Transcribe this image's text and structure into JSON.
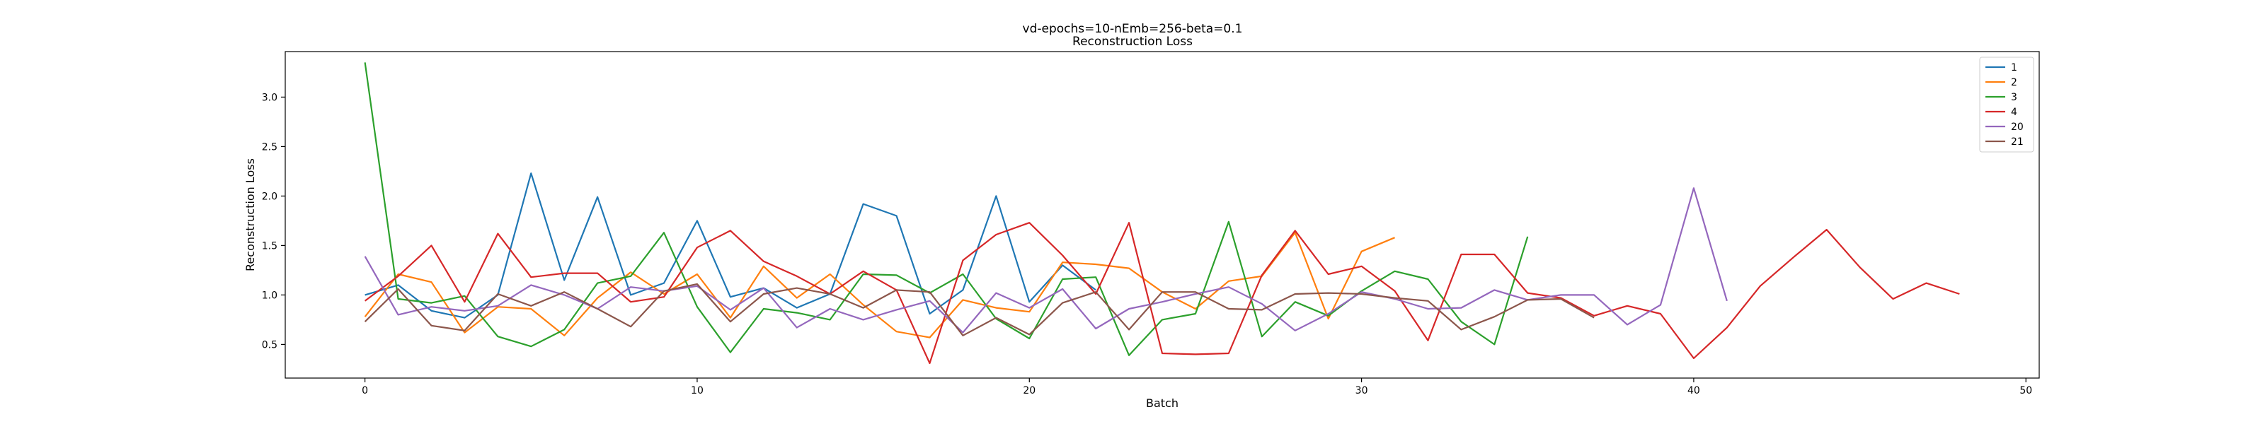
{
  "chart_data": {
    "type": "line",
    "title": "vd-epochs=10-nEmb=256-beta=0.1",
    "subtitle": "Reconstruction Loss",
    "xlabel": "Batch",
    "ylabel": "Reconstruction Loss",
    "xlim": [
      -2.4,
      50.4
    ],
    "ylim": [
      0.16,
      3.46
    ],
    "xticks": [
      0,
      10,
      20,
      30,
      40,
      50
    ],
    "xtick_labels": [
      "0",
      "10",
      "20",
      "30",
      "40",
      "50"
    ],
    "yticks": [
      0.5,
      1.0,
      1.5,
      2.0,
      2.5,
      3.0
    ],
    "ytick_labels": [
      "0.5",
      "1.0",
      "1.5",
      "2.0",
      "2.5",
      "3.0"
    ],
    "grid": false,
    "legend_position": "top-right",
    "series": [
      {
        "name": "1",
        "color": "#1f77b4",
        "values": [
          1.0,
          1.1,
          0.84,
          0.77,
          1.0,
          2.23,
          1.15,
          1.99,
          1.0,
          1.12,
          1.75,
          0.98,
          1.07,
          0.87,
          1.01,
          1.92,
          1.8,
          0.81,
          1.05,
          2.0,
          0.93,
          1.3,
          1.05
        ]
      },
      {
        "name": "2",
        "color": "#ff7f0e",
        "values": [
          0.78,
          1.21,
          1.13,
          0.62,
          0.88,
          0.86,
          0.59,
          0.97,
          1.23,
          1.01,
          1.21,
          0.77,
          1.29,
          0.97,
          1.21,
          0.9,
          0.63,
          0.57,
          0.95,
          0.87,
          0.83,
          1.33,
          1.31,
          1.27,
          1.03,
          0.86,
          1.14,
          1.19,
          1.63,
          0.76,
          1.44,
          1.58
        ]
      },
      {
        "name": "3",
        "color": "#2ca02c",
        "values": [
          3.35,
          0.96,
          0.92,
          0.99,
          0.58,
          0.48,
          0.65,
          1.12,
          1.19,
          1.63,
          0.88,
          0.42,
          0.86,
          0.82,
          0.75,
          1.21,
          1.2,
          1.02,
          1.21,
          0.76,
          0.56,
          1.16,
          1.18,
          0.39,
          0.75,
          0.81,
          1.74,
          0.58,
          0.93,
          0.79,
          1.04,
          1.24,
          1.16,
          0.73,
          0.5,
          1.59
        ]
      },
      {
        "name": "4",
        "color": "#d62728",
        "values": [
          0.94,
          1.19,
          1.5,
          0.93,
          1.62,
          1.18,
          1.22,
          1.22,
          0.93,
          0.98,
          1.48,
          1.65,
          1.34,
          1.19,
          1.01,
          1.24,
          1.05,
          0.31,
          1.35,
          1.61,
          1.73,
          1.4,
          1.01,
          1.73,
          0.41,
          0.4,
          0.41,
          1.2,
          1.65,
          1.21,
          1.29,
          1.04,
          0.54,
          1.41,
          1.41,
          1.02,
          0.97,
          0.79,
          0.89,
          0.81,
          0.36,
          0.67,
          1.09,
          1.38,
          1.66,
          1.28,
          0.96,
          1.12,
          1.01
        ]
      },
      {
        "name": "20",
        "color": "#9467bd",
        "values": [
          1.39,
          0.8,
          0.88,
          0.84,
          0.89,
          1.1,
          1.0,
          0.86,
          1.08,
          1.04,
          1.09,
          0.85,
          1.07,
          0.67,
          0.86,
          0.75,
          0.85,
          0.94,
          0.62,
          1.02,
          0.87,
          1.06,
          0.66,
          0.86,
          0.93,
          1.01,
          1.08,
          0.91,
          0.64,
          0.81,
          1.03,
          0.96,
          0.86,
          0.87,
          1.05,
          0.95,
          1.0,
          1.0,
          0.7,
          0.9,
          2.08,
          0.94
        ]
      },
      {
        "name": "21",
        "color": "#8c564b",
        "values": [
          0.73,
          1.06,
          0.69,
          0.64,
          1.01,
          0.89,
          1.03,
          0.86,
          0.68,
          1.04,
          1.11,
          0.73,
          1.01,
          1.07,
          1.01,
          0.87,
          1.05,
          1.03,
          0.59,
          0.77,
          0.6,
          0.92,
          1.03,
          0.65,
          1.03,
          1.03,
          0.86,
          0.85,
          1.01,
          1.02,
          1.01,
          0.97,
          0.94,
          0.65,
          0.78,
          0.95,
          0.96,
          0.77
        ]
      }
    ]
  }
}
